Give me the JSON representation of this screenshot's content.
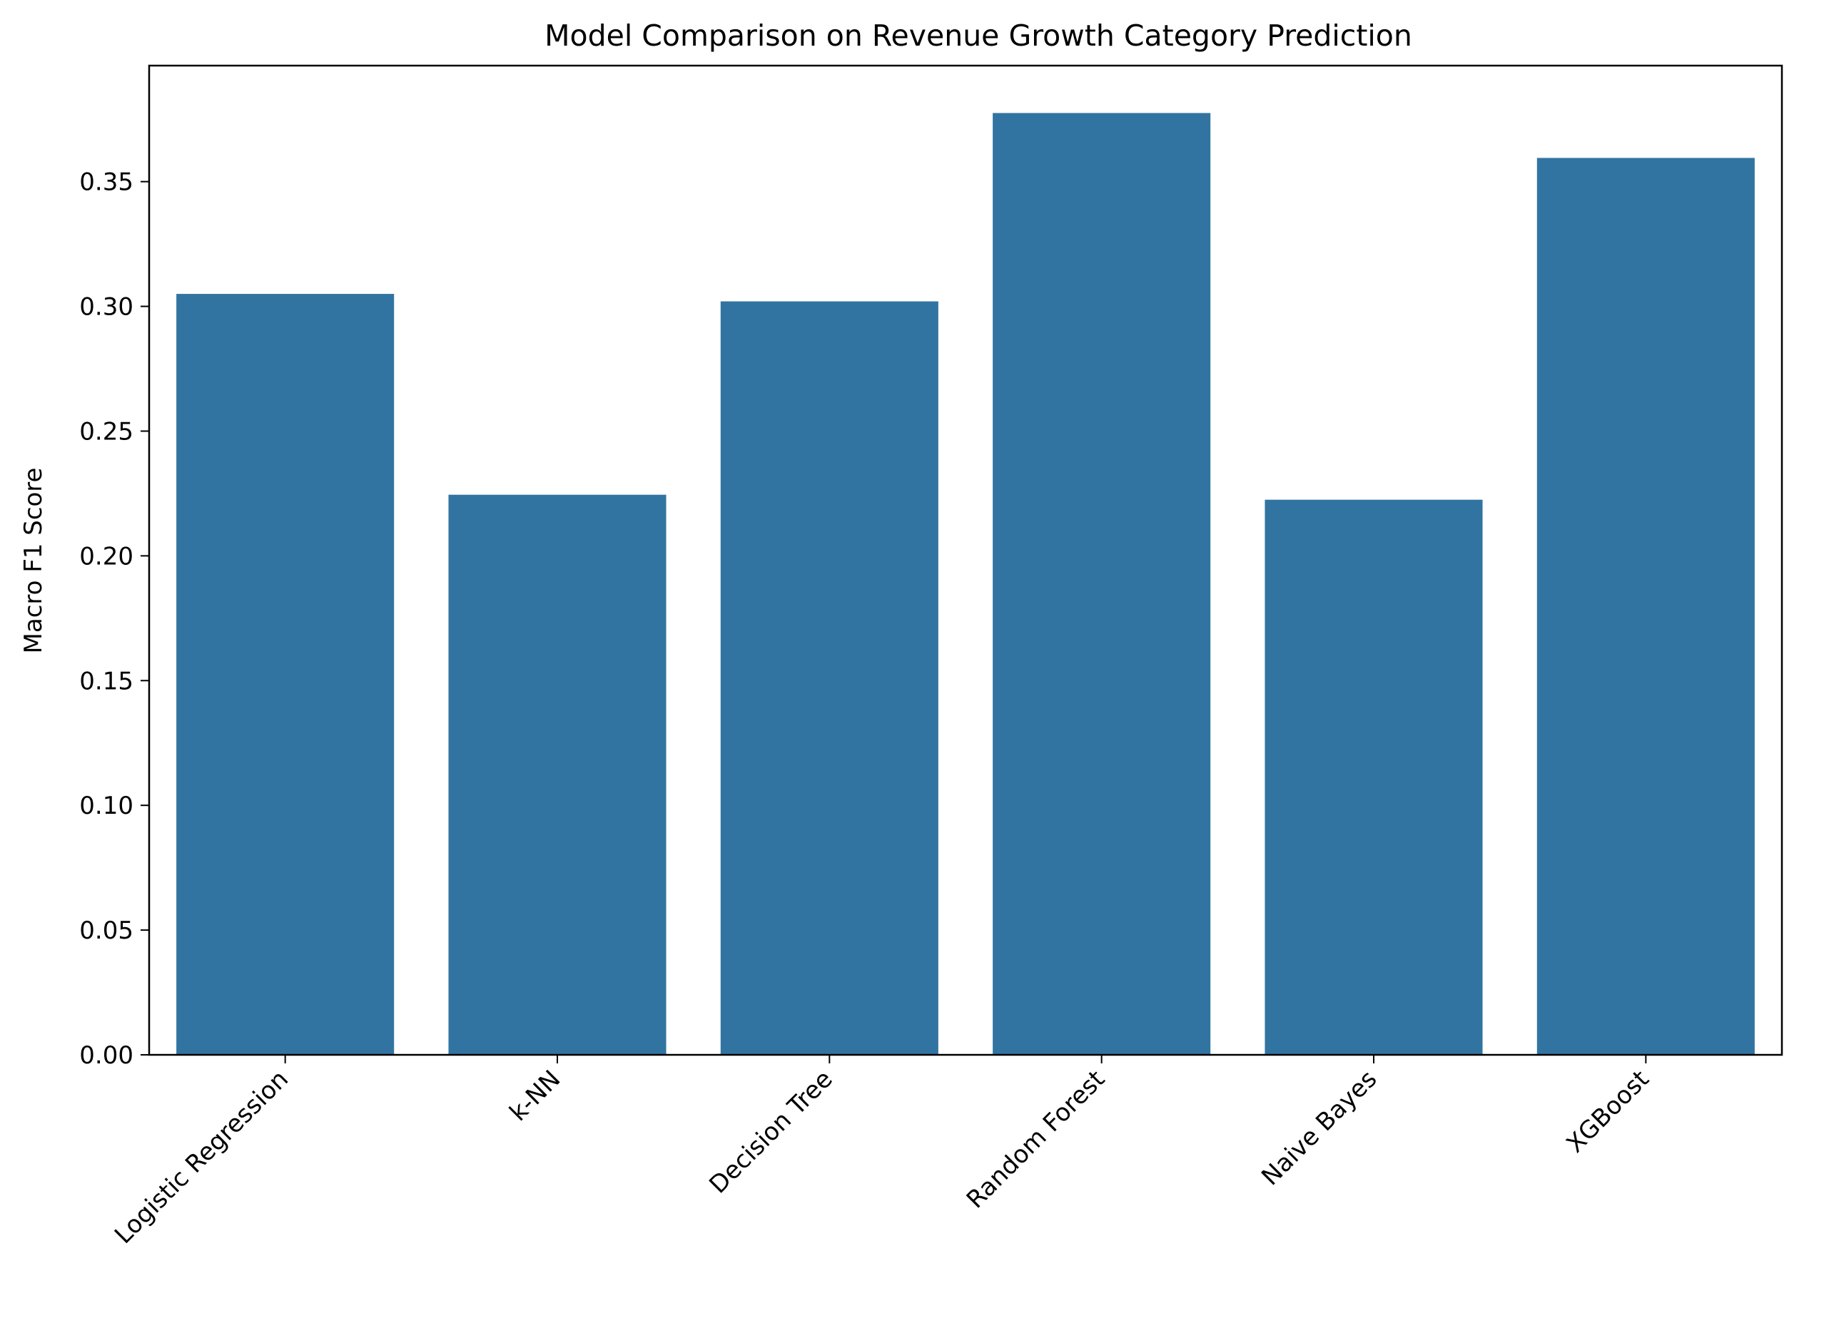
{
  "chart_data": {
    "type": "bar",
    "title": "Model Comparison on Revenue Growth Category Prediction",
    "xlabel": "",
    "ylabel": "Macro F1 Score",
    "categories": [
      "Logistic Regression",
      "k-NN",
      "Decision Tree",
      "Random Forest",
      "Naive Bayes",
      "XGBoost"
    ],
    "values": [
      0.305,
      0.2245,
      0.302,
      0.3775,
      0.2225,
      0.3595
    ],
    "ylim": [
      0,
      0.3965
    ],
    "yticks": [
      0.0,
      0.05,
      0.1,
      0.15,
      0.2,
      0.25,
      0.3,
      0.35
    ],
    "ytick_labels": [
      "0.00",
      "0.05",
      "0.10",
      "0.15",
      "0.20",
      "0.25",
      "0.30",
      "0.35"
    ],
    "grid": false,
    "legend": "none",
    "bar_color": "#3274a1",
    "axis_color": "#000000",
    "background_color": "#ffffff"
  }
}
